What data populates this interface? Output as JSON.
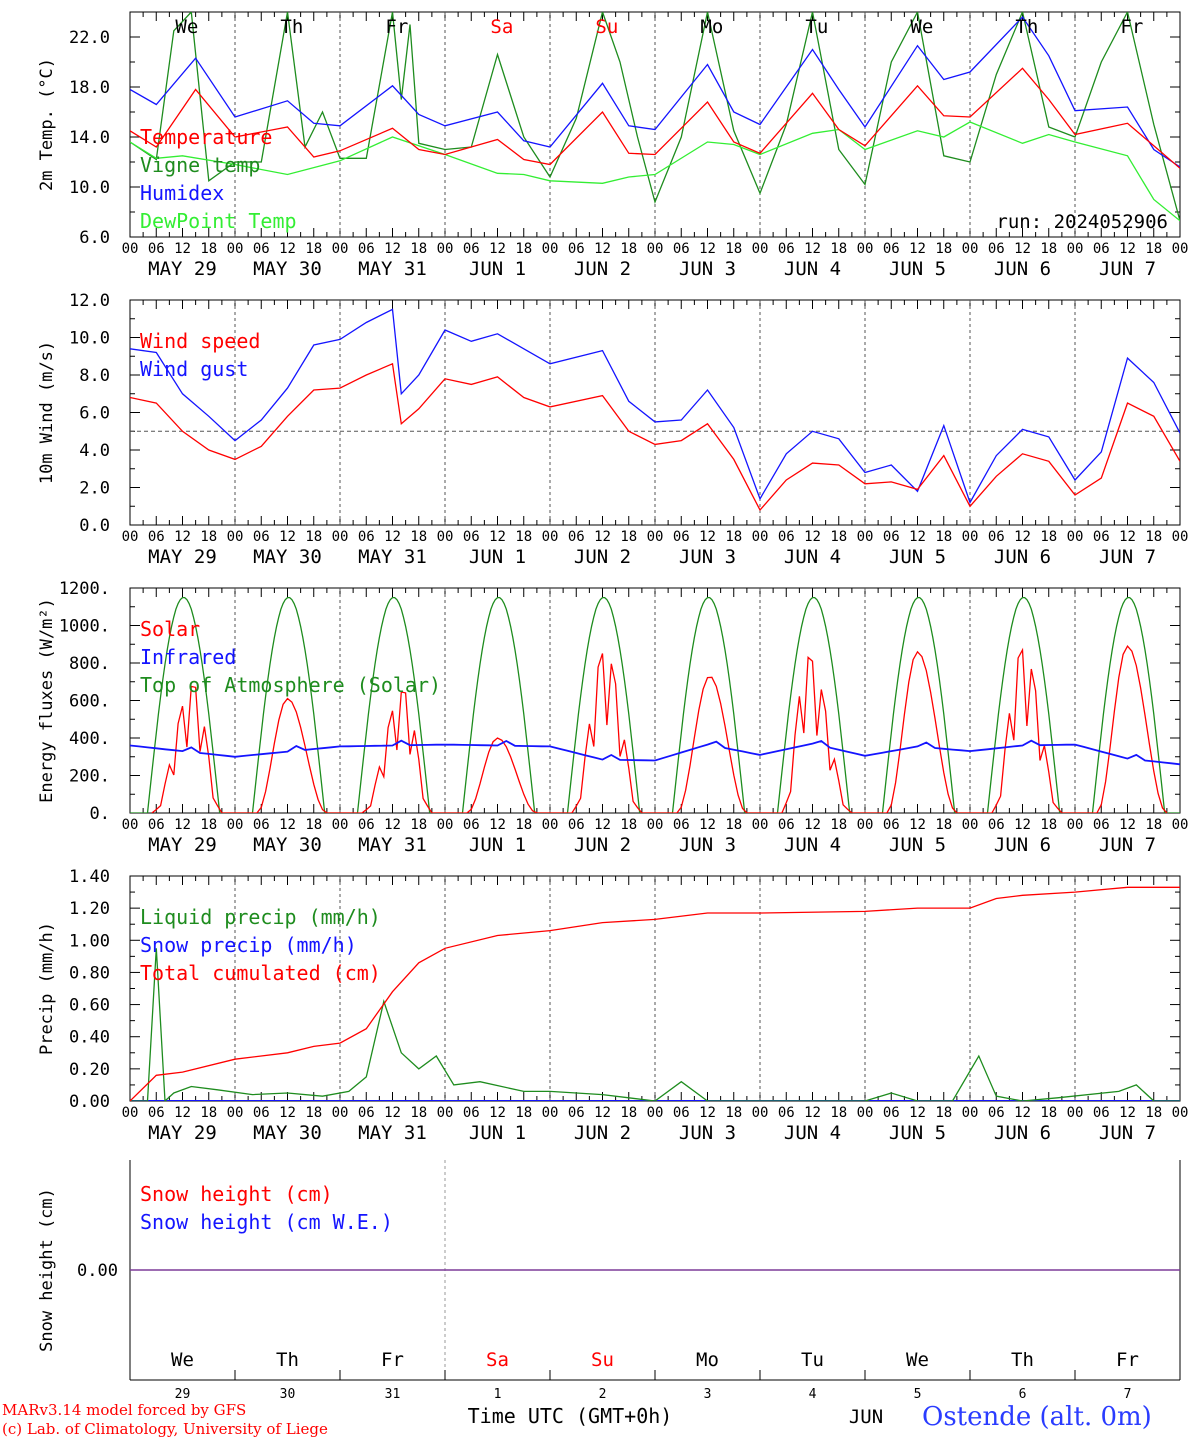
{
  "run_label": "run: 2024052906",
  "footer": {
    "credit_line1": "MARv3.14 model forced by GFS",
    "credit_line2": "(c) Lab. of Climatology, University of Liege",
    "time_axis_label": "Time UTC (GMT+0h)",
    "month_label": "JUN",
    "station": "Ostende (alt. 0m)"
  },
  "colors": {
    "red": "#ff0000",
    "green": "#1e8c1e",
    "blue": "#1414ff",
    "lightgreen": "#33ee33",
    "purple": "#7d3c98",
    "grid": "#555555"
  },
  "axis": {
    "hour_ticks": [
      "00",
      "06",
      "12",
      "18"
    ],
    "date_labels": [
      "MAY 29",
      "MAY 30",
      "MAY 31",
      "JUN  1",
      "JUN  2",
      "JUN  3",
      "JUN  4",
      "JUN  5",
      "JUN  6",
      "JUN  7"
    ],
    "weekdays": [
      {
        "label": "We",
        "weekend": false
      },
      {
        "label": "Th",
        "weekend": false
      },
      {
        "label": "Fr",
        "weekend": false
      },
      {
        "label": "Sa",
        "weekend": true
      },
      {
        "label": "Su",
        "weekend": true
      },
      {
        "label": "Mo",
        "weekend": false
      },
      {
        "label": "Tu",
        "weekend": false
      },
      {
        "label": "We",
        "weekend": false
      },
      {
        "label": "Th",
        "weekend": false
      },
      {
        "label": "Fr",
        "weekend": false
      }
    ],
    "day_numbers": [
      "29",
      "30",
      "31",
      "1",
      "2",
      "3",
      "4",
      "5",
      "6",
      "7"
    ]
  },
  "chart_data": [
    {
      "type": "line",
      "ylabel": "2m Temp. (°C)",
      "ylim": [
        6,
        24
      ],
      "yticks": [
        "6.0",
        "10.0",
        "14.0",
        "18.0",
        "22.0"
      ],
      "x_unit": "hours since 2024-05-29 00 UTC",
      "legend": "top-left",
      "series": [
        {
          "name": "Temperature",
          "color": "red",
          "x": [
            0,
            6,
            15,
            24,
            36,
            42,
            48,
            60,
            66,
            72,
            84,
            90,
            96,
            108,
            114,
            120,
            132,
            138,
            144,
            156,
            162,
            168,
            180,
            186,
            192,
            204,
            210,
            216,
            228,
            234,
            240
          ],
          "y": [
            14.5,
            13.2,
            17.8,
            14.0,
            14.8,
            12.4,
            12.9,
            14.7,
            13.0,
            12.6,
            13.8,
            12.2,
            11.8,
            16.0,
            12.7,
            12.6,
            16.8,
            13.6,
            12.7,
            17.5,
            14.6,
            13.3,
            18.1,
            15.7,
            15.6,
            19.5,
            17.0,
            14.2,
            15.1,
            13.3,
            11.5
          ]
        },
        {
          "name": "Vigne temp",
          "color": "green",
          "x": [
            0,
            6,
            10,
            14,
            18,
            24,
            30,
            36,
            40,
            44,
            48,
            54,
            60,
            62,
            64,
            66,
            72,
            78,
            84,
            90,
            96,
            102,
            108,
            112,
            116,
            120,
            126,
            132,
            138,
            144,
            150,
            156,
            162,
            168,
            174,
            180,
            186,
            192,
            198,
            204,
            210,
            216,
            222,
            228,
            234,
            240
          ],
          "y": [
            13.6,
            12.2,
            22.5,
            24,
            10.5,
            12.0,
            12.0,
            24,
            13.2,
            16.0,
            12.3,
            12.3,
            24,
            17.0,
            23.0,
            13.5,
            13.0,
            13.2,
            20.6,
            14.0,
            10.8,
            15.5,
            24,
            20.0,
            14.0,
            8.8,
            14.0,
            24,
            14.5,
            9.5,
            15.0,
            24,
            13.0,
            10.2,
            20.0,
            24,
            12.5,
            12.0,
            19.0,
            24,
            14.8,
            14.0,
            20.0,
            24,
            15.0,
            7.3
          ]
        },
        {
          "name": "Humidex",
          "color": "blue",
          "x": [
            0,
            6,
            15,
            24,
            36,
            42,
            48,
            60,
            66,
            72,
            84,
            90,
            96,
            108,
            114,
            120,
            132,
            138,
            144,
            156,
            162,
            168,
            180,
            186,
            192,
            204,
            210,
            216,
            228,
            234,
            240
          ],
          "y": [
            17.8,
            16.6,
            20.3,
            15.6,
            16.9,
            15.1,
            14.9,
            18.1,
            15.8,
            14.9,
            16.0,
            13.7,
            13.2,
            18.3,
            14.9,
            14.6,
            19.8,
            16.0,
            15.0,
            21.0,
            17.8,
            14.8,
            21.3,
            18.6,
            19.2,
            23.6,
            20.5,
            16.1,
            16.4,
            13.0,
            11.6
          ]
        },
        {
          "name": "DewPoint Temp",
          "color": "lightgreen",
          "x": [
            0,
            6,
            12,
            24,
            36,
            48,
            60,
            72,
            84,
            90,
            96,
            108,
            114,
            120,
            132,
            138,
            144,
            156,
            162,
            168,
            180,
            186,
            192,
            204,
            210,
            216,
            228,
            234,
            240
          ],
          "y": [
            13.6,
            12.3,
            12.5,
            11.8,
            11.0,
            12.1,
            14.0,
            12.6,
            11.1,
            11.0,
            10.5,
            10.3,
            10.8,
            11.0,
            13.6,
            13.4,
            12.6,
            14.3,
            14.6,
            13.0,
            14.5,
            14.0,
            15.2,
            13.5,
            14.2,
            13.6,
            12.5,
            9.0,
            7.3
          ]
        }
      ]
    },
    {
      "type": "line",
      "ylabel": "10m Wind (m/s)",
      "ylim": [
        0,
        12
      ],
      "yticks": [
        "0.0",
        "2.0",
        "4.0",
        "6.0",
        "8.0",
        "10.0",
        "12.0"
      ],
      "reference_line": 5.0,
      "legend": "top-left",
      "series": [
        {
          "name": "Wind speed",
          "color": "red",
          "x": [
            0,
            6,
            12,
            18,
            24,
            30,
            36,
            42,
            48,
            54,
            60,
            62,
            66,
            72,
            78,
            84,
            90,
            96,
            108,
            114,
            120,
            126,
            132,
            138,
            144,
            150,
            156,
            162,
            168,
            174,
            180,
            186,
            192,
            198,
            204,
            210,
            216,
            222,
            228,
            234,
            240
          ],
          "y": [
            6.8,
            6.5,
            5.0,
            4.0,
            3.5,
            4.2,
            5.8,
            7.2,
            7.3,
            8.0,
            8.6,
            5.4,
            6.2,
            7.8,
            7.5,
            7.9,
            6.8,
            6.3,
            6.9,
            5.0,
            4.3,
            4.5,
            5.4,
            3.5,
            0.8,
            2.4,
            3.3,
            3.2,
            2.2,
            2.3,
            1.9,
            3.7,
            1.0,
            2.6,
            3.8,
            3.4,
            1.6,
            2.5,
            6.5,
            5.8,
            3.4
          ]
        },
        {
          "name": "Wind gust",
          "color": "blue",
          "x": [
            0,
            6,
            12,
            18,
            24,
            30,
            36,
            42,
            48,
            54,
            60,
            62,
            66,
            72,
            78,
            84,
            90,
            96,
            108,
            114,
            120,
            126,
            132,
            138,
            144,
            150,
            156,
            162,
            168,
            174,
            180,
            186,
            192,
            198,
            204,
            210,
            216,
            222,
            228,
            234,
            240
          ],
          "y": [
            9.4,
            9.2,
            7.0,
            5.8,
            4.5,
            5.6,
            7.3,
            9.6,
            9.9,
            10.8,
            11.5,
            7.0,
            8.0,
            10.4,
            9.8,
            10.2,
            9.4,
            8.6,
            9.3,
            6.6,
            5.5,
            5.6,
            7.2,
            5.2,
            1.4,
            3.8,
            5.0,
            4.6,
            2.8,
            3.2,
            1.8,
            5.3,
            1.2,
            3.7,
            5.1,
            4.7,
            2.4,
            3.9,
            8.9,
            7.6,
            4.9
          ]
        }
      ]
    },
    {
      "type": "line",
      "ylabel": "Energy fluxes (W/m²)",
      "ylim": [
        0,
        1200
      ],
      "yticks": [
        "0.",
        "200.",
        "400.",
        "600.",
        "800.",
        "1000.",
        "1200."
      ],
      "legend": "top-left",
      "series": [
        {
          "name": "Solar",
          "color": "red",
          "peak_hours": [
            14.5,
            36.0,
            62.5,
            84.0,
            108.5,
            132.5,
            155.0,
            180.0,
            204.0,
            228.0
          ],
          "daily_peaks": [
            680,
            610,
            650,
            400,
            860,
            730,
            830,
            860,
            870,
            890
          ]
        },
        {
          "name": "Infrared",
          "color": "blue",
          "x": [
            0,
            24,
            48,
            72,
            96,
            108,
            120,
            132,
            144,
            156,
            168,
            180,
            192,
            204,
            216,
            228,
            240
          ],
          "y": [
            360,
            300,
            355,
            365,
            355,
            285,
            280,
            365,
            310,
            370,
            305,
            355,
            330,
            360,
            365,
            290,
            260
          ]
        },
        {
          "name": "Top of Atmosphere (Solar)",
          "color": "green",
          "daily_peak": 1150,
          "sunrise_hour": 4,
          "sunset_hour": 20.5
        }
      ]
    },
    {
      "type": "line",
      "ylabel": "Precip (mm/h)",
      "ylim": [
        0,
        1.4
      ],
      "yticks": [
        "0.00",
        "0.20",
        "0.40",
        "0.60",
        "0.80",
        "1.00",
        "1.20",
        "1.40"
      ],
      "legend": "top-left",
      "series": [
        {
          "name": "Liquid precip (mm/h)",
          "color": "green",
          "x": [
            0,
            4,
            6,
            8,
            10,
            14,
            20,
            28,
            36,
            44,
            50,
            54,
            58,
            62,
            66,
            70,
            74,
            80,
            90,
            96,
            108,
            114,
            120,
            126,
            132,
            144,
            168,
            174,
            180,
            188,
            194,
            198,
            204,
            212,
            226,
            230,
            234,
            240
          ],
          "y": [
            0,
            0,
            0.95,
            0,
            0.05,
            0.09,
            0.07,
            0.04,
            0.05,
            0.03,
            0.06,
            0.15,
            0.62,
            0.3,
            0.2,
            0.28,
            0.1,
            0.12,
            0.06,
            0.06,
            0.04,
            0.02,
            0.0,
            0.12,
            0.0,
            0.0,
            0.0,
            0.05,
            0.0,
            0.0,
            0.28,
            0.03,
            0.0,
            0.02,
            0.06,
            0.1,
            0.0,
            0.0
          ]
        },
        {
          "name": "Snow precip (mm/h)",
          "color": "blue",
          "x": [
            0,
            240
          ],
          "y": [
            0,
            0
          ]
        },
        {
          "name": "Total cumulated (cm)",
          "color": "red",
          "x": [
            0,
            6,
            12,
            24,
            36,
            42,
            48,
            54,
            60,
            66,
            72,
            84,
            96,
            108,
            120,
            132,
            144,
            168,
            180,
            192,
            198,
            204,
            216,
            228,
            240
          ],
          "y": [
            0,
            0.16,
            0.18,
            0.26,
            0.3,
            0.34,
            0.36,
            0.45,
            0.68,
            0.86,
            0.95,
            1.03,
            1.06,
            1.11,
            1.13,
            1.17,
            1.17,
            1.18,
            1.2,
            1.2,
            1.26,
            1.28,
            1.3,
            1.33,
            1.33
          ]
        }
      ]
    },
    {
      "type": "line",
      "ylabel": "Snow height (cm)",
      "yticks": [
        "0.00"
      ],
      "legend": "top-left",
      "series": [
        {
          "name": "Snow height (cm)",
          "color": "red",
          "x": [
            0,
            240
          ],
          "y": [
            0,
            0
          ]
        },
        {
          "name": "Snow height (cm W.E.)",
          "color": "blue",
          "x": [
            0,
            240
          ],
          "y": [
            0,
            0
          ]
        }
      ]
    }
  ]
}
